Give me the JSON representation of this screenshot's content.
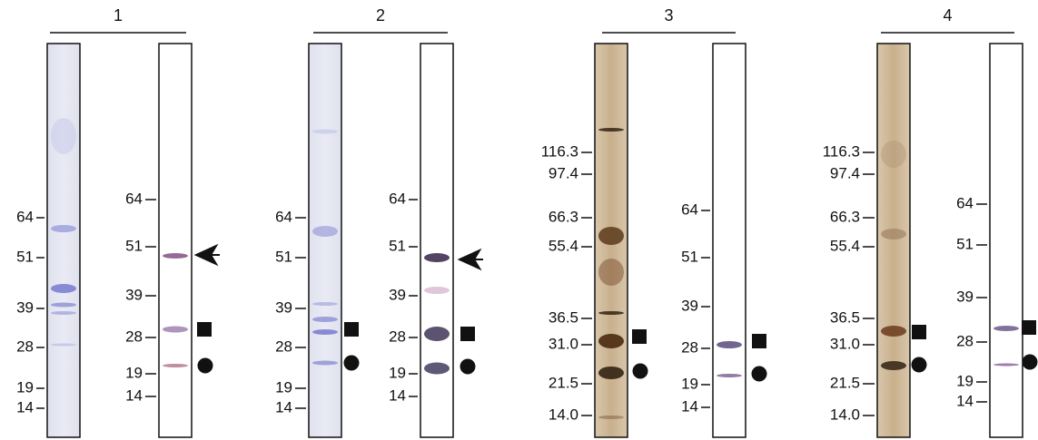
{
  "panels": [
    {
      "label": "1",
      "lanes": [
        {
          "markers": [
            "64",
            "51",
            "39",
            "28",
            "19",
            "14"
          ]
        },
        {
          "markers": [
            "64",
            "51",
            "39",
            "28",
            "19",
            "14"
          ]
        }
      ]
    },
    {
      "label": "2",
      "lanes": [
        {
          "markers": [
            "64",
            "51",
            "39",
            "28",
            "19",
            "14"
          ]
        },
        {
          "markers": [
            "64",
            "51",
            "39",
            "28",
            "19",
            "14"
          ]
        }
      ]
    },
    {
      "label": "3",
      "lanes": [
        {
          "markers": [
            "116.3",
            "97.4",
            "66.3",
            "55.4",
            "36.5",
            "31.0",
            "21.5",
            "14.0"
          ]
        },
        {
          "markers": [
            "64",
            "51",
            "39",
            "28",
            "19",
            "14"
          ]
        }
      ]
    },
    {
      "label": "4",
      "lanes": [
        {
          "markers": [
            "116.3",
            "97.4",
            "66.3",
            "55.4",
            "36.5",
            "31.0",
            "21.5",
            "14.0"
          ]
        },
        {
          "markers": [
            "64",
            "51",
            "39",
            "28",
            "19",
            "14"
          ]
        }
      ]
    }
  ]
}
